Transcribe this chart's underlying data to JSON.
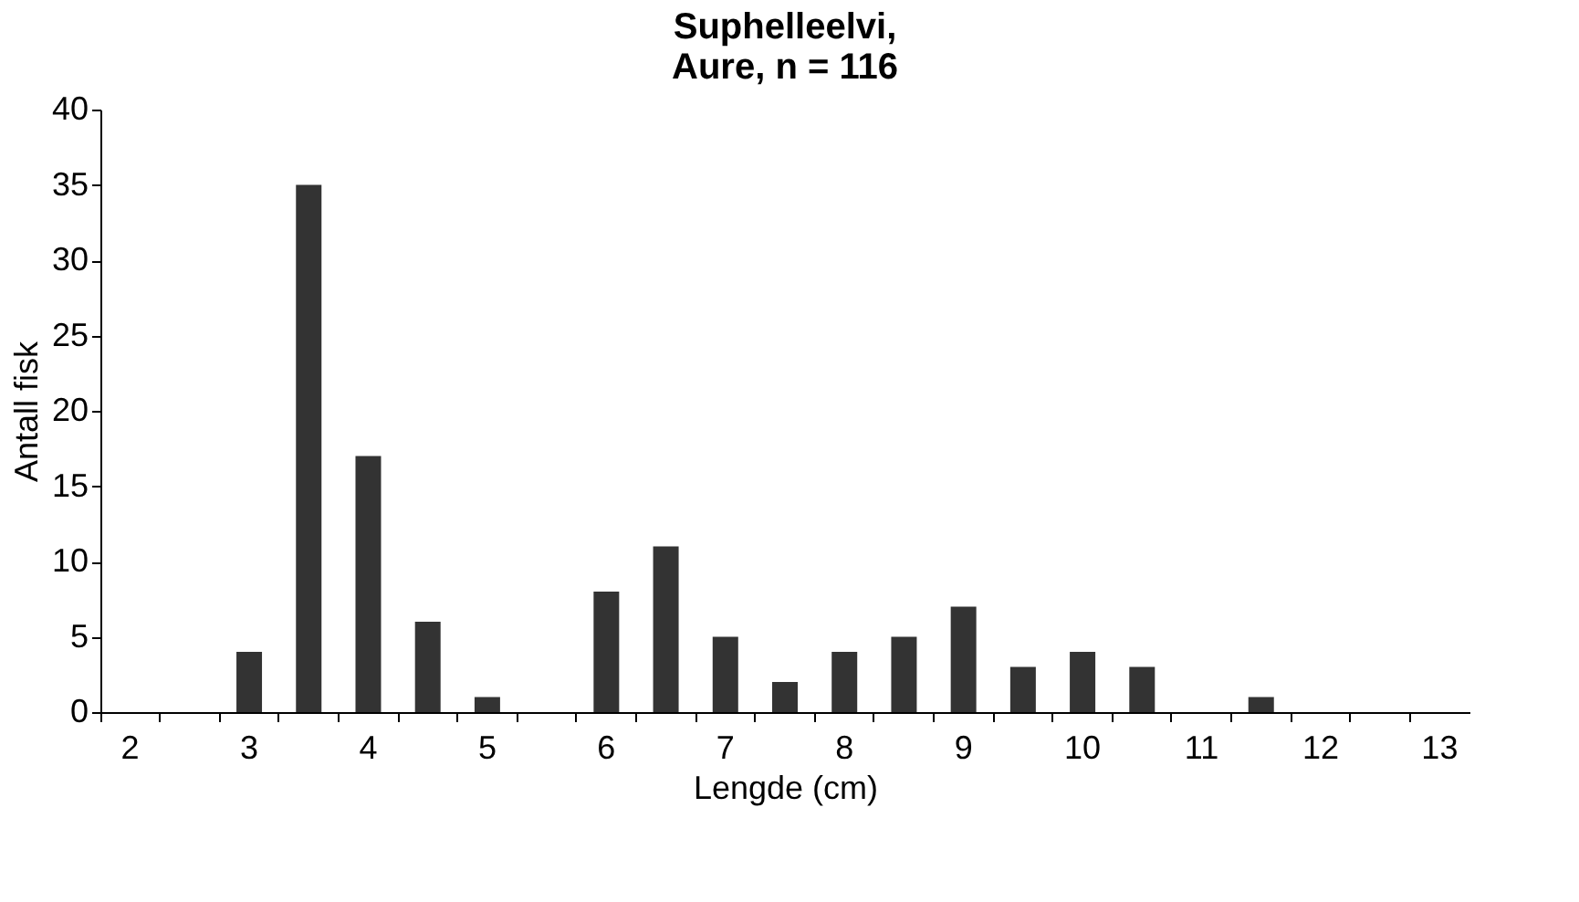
{
  "chart_data": {
    "type": "bar",
    "title": [
      "Suphelleelvi,",
      "Aure, n = 116"
    ],
    "xlabel": "Lengde (cm)",
    "ylabel": "Antall fisk",
    "categories": [
      "2",
      null,
      "3",
      null,
      "4",
      null,
      "5",
      null,
      "6",
      null,
      "7",
      null,
      "8",
      null,
      "9",
      null,
      "10",
      null,
      "11",
      null,
      "12",
      null,
      "13"
    ],
    "values": [
      0,
      0,
      4,
      35,
      17,
      6,
      1,
      0,
      8,
      11,
      5,
      2,
      4,
      5,
      7,
      3,
      4,
      3,
      0,
      1,
      0,
      0,
      0
    ],
    "color": "#333333",
    "ylim": [
      0,
      40
    ],
    "yticks": [
      0,
      5,
      10,
      15,
      20,
      25,
      30,
      35,
      40
    ],
    "grid": false
  }
}
